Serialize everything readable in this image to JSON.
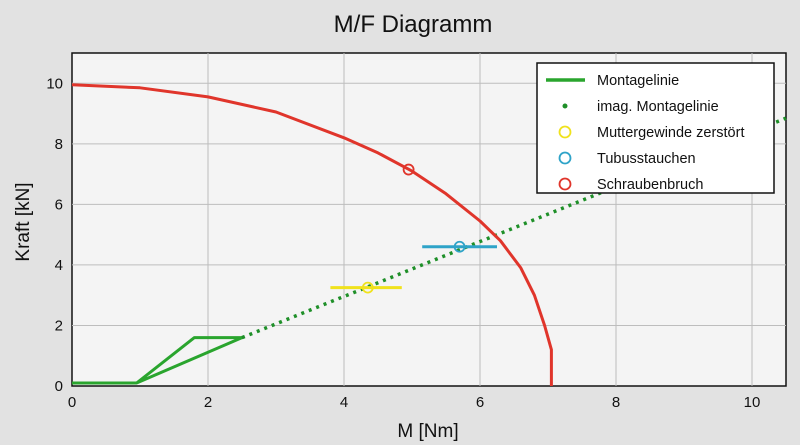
{
  "chart_data": {
    "type": "line",
    "title": "M/F Diagramm",
    "xlabel": "M [Nm]",
    "ylabel": "Kraft [kN]",
    "xlim": [
      0,
      10.5
    ],
    "ylim": [
      0,
      11
    ],
    "x_ticks": [
      0,
      2,
      4,
      6,
      8,
      10
    ],
    "y_ticks": [
      0,
      2,
      4,
      6,
      8,
      10
    ],
    "grid": true,
    "legend_position": "top-right",
    "series": [
      {
        "name": "Montagelinie",
        "kind": "line",
        "color": "#2aa52e",
        "points": [
          [
            0,
            0.1
          ],
          [
            0.95,
            0.1
          ],
          [
            1.8,
            1.6
          ],
          [
            2.5,
            1.6
          ],
          [
            0.95,
            0.1
          ]
        ]
      },
      {
        "name": "imag. Montagelinie",
        "kind": "dotted",
        "color": "#1e8f28",
        "points": [
          [
            2.5,
            1.6
          ],
          [
            10.5,
            8.85
          ]
        ]
      },
      {
        "name": "Muttergewinde zerstört",
        "kind": "marker",
        "color": "#f0e21c",
        "points": [
          [
            4.35,
            3.25
          ]
        ],
        "band": [
          3.8,
          4.85
        ]
      },
      {
        "name": "Tubusstauchen",
        "kind": "marker",
        "color": "#2ea3c8",
        "points": [
          [
            5.7,
            4.6
          ]
        ],
        "band": [
          5.15,
          6.25
        ]
      },
      {
        "name": "Schraubenbruch",
        "kind": "line+marker",
        "color": "#e0352b",
        "points": [
          [
            0,
            9.95
          ],
          [
            1.0,
            9.85
          ],
          [
            2.0,
            9.55
          ],
          [
            3.0,
            9.05
          ],
          [
            4.0,
            8.2
          ],
          [
            4.5,
            7.7
          ],
          [
            5.0,
            7.1
          ],
          [
            5.5,
            6.35
          ],
          [
            6.0,
            5.45
          ],
          [
            6.3,
            4.8
          ],
          [
            6.6,
            3.9
          ],
          [
            6.8,
            3.0
          ],
          [
            6.95,
            2.0
          ],
          [
            7.05,
            1.2
          ],
          [
            7.05,
            0
          ]
        ],
        "marker_points": [
          [
            4.95,
            7.15
          ]
        ]
      }
    ]
  },
  "legend": {
    "items": [
      {
        "label": "Montagelinie",
        "color": "#2aa52e",
        "symbol": "line"
      },
      {
        "label": "imag. Montagelinie",
        "color": "#1e8f28",
        "symbol": "dot"
      },
      {
        "label": "Muttergewinde zerstört",
        "color": "#f0e21c",
        "symbol": "circle"
      },
      {
        "label": "Tubusstauchen",
        "color": "#2ea3c8",
        "symbol": "circle"
      },
      {
        "label": "Schraubenbruch",
        "color": "#e0352b",
        "symbol": "circle"
      }
    ]
  }
}
